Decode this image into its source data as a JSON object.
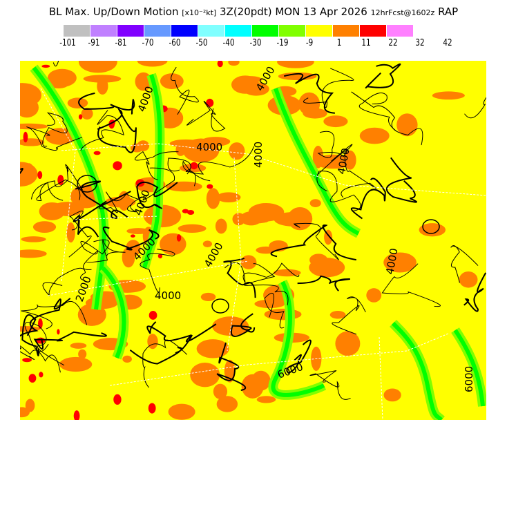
{
  "header": {
    "field": "BL Max. Up/Down Motion",
    "units": "[x10⁻²kt]",
    "valid": "3Z(20pdt) MON 13 Apr 2026",
    "forecast": "12hrFcst@1602z",
    "model": "RAP"
  },
  "legend": {
    "colors": [
      "#c0c0c0",
      "#c080ff",
      "#8000ff",
      "#6699ff",
      "#0000ff",
      "#80ffff",
      "#00ffff",
      "#00ff00",
      "#80ff00",
      "#ffff00",
      "#ff8000",
      "#ff0000",
      "#ff80ff"
    ],
    "labels": [
      "-101",
      "-91",
      "-81",
      "-70",
      "-60",
      "-50",
      "-40",
      "-30",
      "-19",
      "-9",
      "1",
      "11",
      "22",
      "32",
      "42"
    ]
  },
  "map": {
    "background_color": "#ffff00",
    "contour_labels": [
      "4000",
      "4000",
      "4000",
      "4000",
      "4000",
      "4000",
      "4000",
      "4000",
      "4000",
      "4000",
      "6000",
      "6000",
      "2000"
    ]
  }
}
